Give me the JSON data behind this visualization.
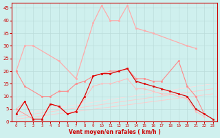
{
  "bg_color": "#cff0ee",
  "grid_color": "#bbdcda",
  "axis_color": "#cc0000",
  "xlabel": "Vent moyen/en rafales ( km/h )",
  "xlim": [
    -0.5,
    23.5
  ],
  "ylim": [
    0,
    47
  ],
  "yticks": [
    0,
    5,
    10,
    15,
    20,
    25,
    30,
    35,
    40,
    45
  ],
  "xticks": [
    0,
    1,
    2,
    3,
    4,
    5,
    6,
    7,
    8,
    9,
    10,
    11,
    12,
    13,
    14,
    15,
    16,
    17,
    18,
    19,
    20,
    21,
    22,
    23
  ],
  "series": [
    {
      "name": "lightest_pink_top_arc",
      "x": [
        0,
        1,
        2,
        5,
        7,
        9,
        10,
        11,
        12,
        13,
        14,
        15,
        16,
        20,
        21
      ],
      "y": [
        20,
        30,
        30,
        24,
        17,
        39,
        46,
        40,
        40,
        46,
        37,
        36,
        35,
        30,
        29
      ],
      "color": "#ffaaaa",
      "lw": 0.9,
      "marker": "o",
      "ms": 1.8,
      "zorder": 2
    },
    {
      "name": "medium_pink_arc_with_markers",
      "x": [
        0,
        1,
        3,
        4,
        5,
        6,
        7,
        8,
        9,
        10,
        11,
        12,
        13,
        14,
        15,
        16,
        17,
        19,
        20,
        21,
        22
      ],
      "y": [
        20,
        14,
        10,
        10,
        12,
        12,
        15,
        16,
        18,
        19,
        20,
        20,
        21,
        17,
        17,
        16,
        16,
        24,
        14,
        10,
        3
      ],
      "color": "#ff8888",
      "lw": 0.8,
      "marker": "o",
      "ms": 1.8,
      "zorder": 3
    },
    {
      "name": "dark_red_dots_main",
      "x": [
        0,
        1,
        2,
        3,
        4,
        5,
        6,
        7,
        8,
        9,
        10,
        11,
        12,
        13,
        14,
        15,
        16,
        17,
        18,
        19,
        20,
        21,
        22,
        23
      ],
      "y": [
        3,
        8,
        1,
        1,
        7,
        6,
        3,
        4,
        10,
        18,
        19,
        19,
        20,
        21,
        16,
        15,
        14,
        13,
        12,
        11,
        10,
        5,
        3,
        1
      ],
      "color": "#dd0000",
      "lw": 0.9,
      "marker": "o",
      "ms": 1.8,
      "zorder": 5
    },
    {
      "name": "light_pink_lower_arc_markers",
      "x": [
        0,
        1,
        2,
        3,
        4,
        5,
        6,
        7,
        8,
        9,
        10,
        11,
        12,
        13,
        14,
        15,
        16,
        17,
        18,
        19,
        20,
        21,
        22
      ],
      "y": [
        5,
        8,
        1,
        1,
        7,
        6,
        3,
        4,
        9,
        14,
        15,
        15,
        16,
        17,
        13,
        13,
        12,
        11,
        11,
        10,
        9,
        4,
        2
      ],
      "color": "#ffbbbb",
      "lw": 0.7,
      "marker": "o",
      "ms": 1.5,
      "zorder": 2
    },
    {
      "name": "rising_diag_line1",
      "x": [
        0,
        23
      ],
      "y": [
        1,
        11
      ],
      "color": "#ffcccc",
      "lw": 0.7,
      "marker": null,
      "ms": 0,
      "zorder": 1
    },
    {
      "name": "rising_diag_line2",
      "x": [
        0,
        23
      ],
      "y": [
        2,
        13
      ],
      "color": "#ffcccc",
      "lw": 0.7,
      "marker": null,
      "ms": 0,
      "zorder": 1
    },
    {
      "name": "rising_diag_line3",
      "x": [
        0,
        23
      ],
      "y": [
        3,
        15
      ],
      "color": "#ffdddd",
      "lw": 0.6,
      "marker": null,
      "ms": 0,
      "zorder": 1
    },
    {
      "name": "light_pink_triangle_small",
      "x": [
        0,
        2,
        3,
        4,
        5,
        6
      ],
      "y": [
        5,
        1,
        1,
        7,
        6,
        3
      ],
      "color": "#ff9999",
      "lw": 0.7,
      "marker": "^",
      "ms": 1.5,
      "zorder": 4
    }
  ]
}
